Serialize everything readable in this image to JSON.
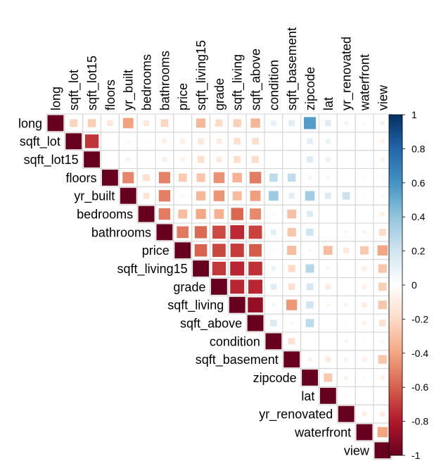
{
  "chart_data": {
    "type": "heatmap",
    "title": "",
    "subtitle": "",
    "xlabel": "",
    "ylabel": "",
    "shape": "upper-triangle",
    "glyph": "square sized by |r|",
    "variables": [
      "long",
      "sqft_lot",
      "sqft_lot15",
      "floors",
      "yr_built",
      "bedrooms",
      "bathrooms",
      "price",
      "sqft_living15",
      "grade",
      "sqft_living",
      "sqft_above",
      "condition",
      "sqft_basement",
      "zipcode",
      "lat",
      "yr_renovated",
      "waterfront",
      "view"
    ],
    "matrix": [
      [
        1,
        0.23,
        0.25,
        0.13,
        0.41,
        0.13,
        0.22,
        0.02,
        0.33,
        0.2,
        0.24,
        0.34,
        -0.11,
        -0.14,
        -0.56,
        -0.14,
        -0.07,
        -0.04,
        -0.08
      ],
      [
        0.23,
        1,
        0.72,
        -0.01,
        0.05,
        0.03,
        0.09,
        0.09,
        0.14,
        0.11,
        0.17,
        0.18,
        -0.01,
        0.02,
        -0.13,
        -0.09,
        0.01,
        0.02,
        0.07
      ],
      [
        0.25,
        0.72,
        1,
        -0.01,
        0.07,
        0.03,
        0.09,
        0.08,
        0.18,
        0.12,
        0.18,
        0.19,
        0.0,
        0.02,
        -0.15,
        -0.09,
        0.01,
        0.03,
        0.07
      ],
      [
        0.13,
        -0.01,
        -0.01,
        1,
        0.49,
        0.18,
        0.5,
        0.26,
        0.28,
        0.46,
        0.35,
        0.52,
        -0.26,
        -0.25,
        -0.06,
        0.05,
        0.01,
        0.02,
        0.03
      ],
      [
        0.41,
        0.05,
        0.07,
        0.49,
        1,
        0.15,
        0.51,
        0.05,
        0.33,
        0.45,
        0.32,
        0.42,
        -0.36,
        -0.13,
        -0.35,
        -0.15,
        -0.22,
        -0.03,
        -0.05
      ],
      [
        0.13,
        0.03,
        0.03,
        0.18,
        0.15,
        1,
        0.52,
        0.31,
        0.39,
        0.36,
        0.58,
        0.48,
        0.03,
        0.3,
        -0.15,
        -0.01,
        0.02,
        -0.01,
        0.08
      ],
      [
        0.22,
        0.09,
        0.09,
        0.5,
        0.51,
        0.52,
        1,
        0.53,
        0.57,
        0.66,
        0.75,
        0.68,
        -0.12,
        0.28,
        -0.2,
        0.02,
        0.05,
        0.06,
        0.19
      ],
      [
        0.02,
        0.09,
        0.08,
        0.26,
        0.05,
        0.31,
        0.53,
        1,
        0.59,
        0.67,
        0.7,
        0.61,
        0.04,
        0.32,
        -0.05,
        0.31,
        0.13,
        0.27,
        0.4
      ],
      [
        0.33,
        0.14,
        0.18,
        0.28,
        0.33,
        0.39,
        0.57,
        0.59,
        1,
        0.71,
        0.76,
        0.73,
        -0.09,
        0.2,
        -0.28,
        0.05,
        -0.0,
        0.09,
        0.28
      ],
      [
        0.2,
        0.11,
        0.12,
        0.46,
        0.45,
        0.36,
        0.66,
        0.67,
        0.71,
        1,
        0.76,
        0.76,
        -0.14,
        0.17,
        -0.18,
        0.11,
        0.01,
        0.08,
        0.25
      ],
      [
        0.24,
        0.17,
        0.18,
        0.35,
        0.32,
        0.58,
        0.75,
        0.7,
        0.76,
        0.76,
        1,
        0.88,
        -0.06,
        0.44,
        -0.2,
        0.05,
        0.06,
        0.1,
        0.28
      ],
      [
        0.34,
        0.18,
        0.19,
        0.52,
        0.42,
        0.48,
        0.68,
        0.61,
        0.73,
        0.76,
        0.88,
        1,
        -0.16,
        -0.05,
        -0.26,
        -0.0,
        0.02,
        0.07,
        0.17
      ],
      [
        -0.11,
        -0.01,
        0.0,
        -0.26,
        -0.36,
        0.03,
        -0.12,
        0.04,
        -0.09,
        -0.14,
        -0.06,
        -0.16,
        1,
        0.17,
        0.0,
        -0.01,
        -0.06,
        0.02,
        0.05
      ],
      [
        -0.14,
        0.02,
        0.02,
        -0.25,
        -0.13,
        0.3,
        0.28,
        0.32,
        0.2,
        0.17,
        0.44,
        -0.05,
        0.17,
        1,
        0.07,
        0.11,
        0.07,
        0.08,
        0.28
      ],
      [
        -0.56,
        -0.13,
        -0.15,
        -0.06,
        -0.35,
        -0.15,
        -0.2,
        -0.05,
        -0.28,
        -0.18,
        -0.2,
        -0.26,
        0.0,
        0.07,
        1,
        0.27,
        0.06,
        0.03,
        0.08
      ],
      [
        -0.14,
        -0.09,
        -0.09,
        0.05,
        -0.15,
        -0.01,
        0.02,
        0.31,
        0.05,
        0.11,
        0.05,
        -0.0,
        -0.01,
        0.11,
        0.27,
        1,
        0.03,
        -0.01,
        0.01
      ],
      [
        -0.07,
        0.01,
        0.01,
        0.01,
        -0.22,
        0.02,
        0.05,
        0.13,
        -0.0,
        0.01,
        0.06,
        0.02,
        -0.06,
        0.07,
        0.06,
        0.03,
        1,
        0.09,
        0.1
      ],
      [
        -0.04,
        0.02,
        0.03,
        0.02,
        -0.03,
        -0.01,
        0.06,
        0.27,
        0.09,
        0.08,
        0.1,
        0.07,
        0.02,
        0.08,
        0.03,
        -0.01,
        0.09,
        1,
        0.4
      ],
      [
        -0.08,
        0.07,
        0.07,
        0.03,
        -0.05,
        0.08,
        0.19,
        0.4,
        0.28,
        0.25,
        0.28,
        0.17,
        0.05,
        0.28,
        0.08,
        0.01,
        0.1,
        0.4,
        1
      ]
    ],
    "colorbar": {
      "range": [
        -1,
        1
      ],
      "tick_labels": [
        "1",
        "0.8",
        "0.6",
        "0.4",
        "0.2",
        "0",
        "-0.2",
        "-0.4",
        "-0.6",
        "-0.8",
        "-1"
      ],
      "colors": [
        "#67001F",
        "#B2182B",
        "#D6604D",
        "#F4A582",
        "#FDDBC7",
        "#FFFFFF",
        "#D1E5F0",
        "#92C5DE",
        "#4393C3",
        "#2166AC",
        "#053061"
      ]
    },
    "grid": true,
    "legend": "right"
  }
}
